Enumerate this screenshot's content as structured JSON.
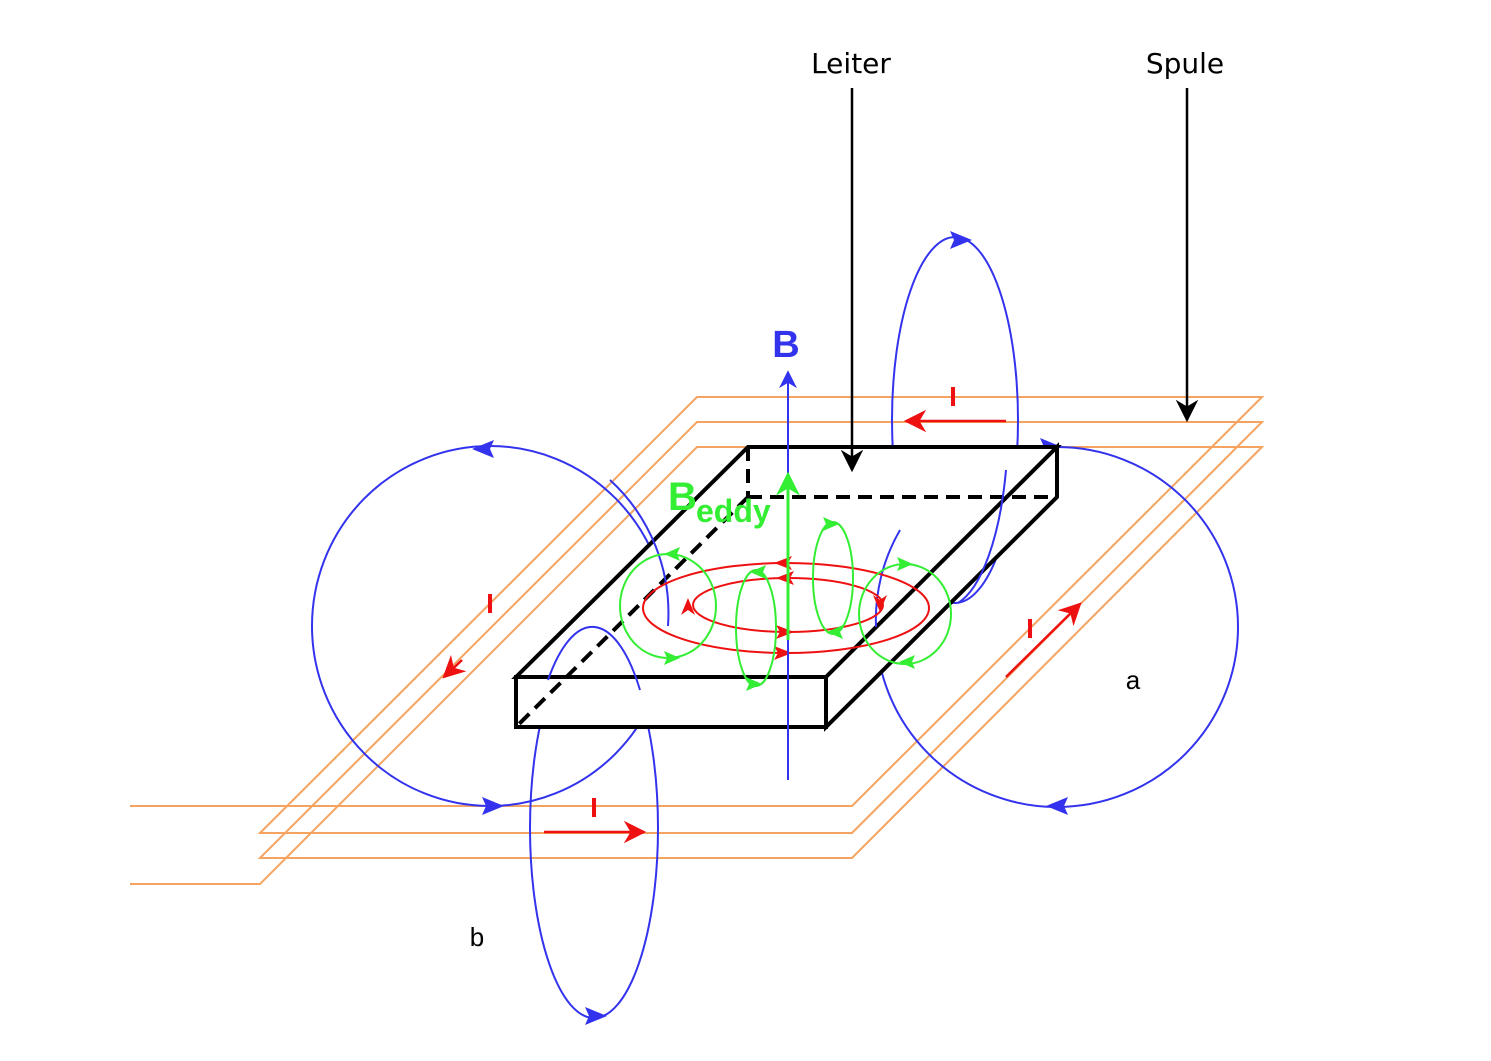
{
  "labels": {
    "leiter": "Leiter",
    "spule": "Spule",
    "b_field": "B",
    "b_eddy_main": "B",
    "b_eddy_sub": "eddy",
    "current": "I",
    "point_a": "a",
    "point_b": "b"
  },
  "colors": {
    "coil": "#f4a460",
    "magnetic_field": "#3333ee",
    "eddy_field": "#33ee33",
    "current": "#ee1111",
    "conductor": "#000000"
  }
}
